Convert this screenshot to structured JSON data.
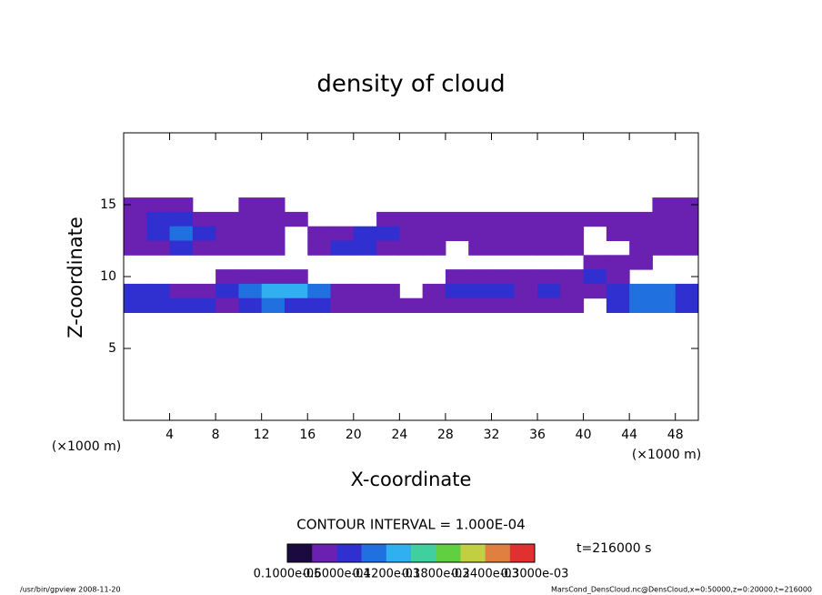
{
  "chart_data": {
    "type": "contour",
    "title": "density of cloud",
    "x_label": "X-coordinate",
    "y_label": "Z-coordinate",
    "x_unit_left": "(×1000 m)",
    "x_unit_right": "(×1000 m)",
    "contour_interval": "CONTOUR INTERVAL = 1.000E-04",
    "time_label": "t=216000 s",
    "footer_left": "/usr/bin/gpview  2008-11-20",
    "footer_right": "MarsCond_DensCloud.nc@DensCloud,x=0:50000,z=0:20000,t=216000",
    "xlim": [
      0,
      50
    ],
    "ylim": [
      0,
      20
    ],
    "xticks": [
      4,
      8,
      12,
      16,
      20,
      24,
      28,
      32,
      36,
      40,
      44,
      48
    ],
    "yticks": [
      5,
      10,
      15
    ],
    "x": [
      1,
      3,
      5,
      7,
      9,
      11,
      13,
      15,
      17,
      19,
      21,
      23,
      25,
      27,
      29,
      31,
      33,
      35,
      37,
      39,
      41,
      43,
      45,
      47,
      49
    ],
    "y": [
      15,
      14,
      13,
      12,
      11,
      10,
      9,
      8
    ],
    "grid": [
      [
        4e-05,
        4e-05,
        4e-05,
        null,
        null,
        4e-05,
        4e-05,
        null,
        null,
        null,
        null,
        null,
        null,
        null,
        null,
        null,
        null,
        null,
        null,
        null,
        null,
        null,
        null,
        4e-05,
        4e-05
      ],
      [
        4e-05,
        8e-05,
        8e-05,
        4e-05,
        4e-05,
        4e-05,
        4e-05,
        4e-05,
        null,
        null,
        null,
        4e-05,
        4e-05,
        4e-05,
        4e-05,
        4e-05,
        4e-05,
        4e-05,
        4e-05,
        4e-05,
        4e-05,
        4e-05,
        4e-05,
        4e-05,
        4e-05
      ],
      [
        4e-05,
        8e-05,
        0.00011,
        8e-05,
        4e-05,
        4e-05,
        4e-05,
        null,
        4e-05,
        4e-05,
        8e-05,
        8e-05,
        4e-05,
        4e-05,
        4e-05,
        4e-05,
        4e-05,
        4e-05,
        4e-05,
        4e-05,
        null,
        4e-05,
        4e-05,
        4e-05,
        4e-05
      ],
      [
        4e-05,
        4e-05,
        8e-05,
        4e-05,
        4e-05,
        4e-05,
        4e-05,
        null,
        4e-05,
        8e-05,
        8e-05,
        4e-05,
        4e-05,
        4e-05,
        null,
        4e-05,
        4e-05,
        4e-05,
        4e-05,
        4e-05,
        null,
        null,
        4e-05,
        4e-05,
        4e-05
      ],
      [
        null,
        null,
        null,
        null,
        null,
        null,
        null,
        null,
        null,
        null,
        null,
        null,
        null,
        null,
        null,
        null,
        null,
        null,
        null,
        null,
        4e-05,
        4e-05,
        4e-05,
        null,
        null
      ],
      [
        null,
        null,
        null,
        null,
        4e-05,
        4e-05,
        4e-05,
        4e-05,
        null,
        null,
        null,
        null,
        null,
        null,
        4e-05,
        4e-05,
        4e-05,
        4e-05,
        4e-05,
        4e-05,
        8e-05,
        4e-05,
        null,
        null,
        null
      ],
      [
        8e-05,
        8e-05,
        4e-05,
        4e-05,
        8e-05,
        0.00011,
        0.00014,
        0.00014,
        0.00011,
        4e-05,
        4e-05,
        4e-05,
        null,
        4e-05,
        8e-05,
        8e-05,
        8e-05,
        4e-05,
        8e-05,
        4e-05,
        4e-05,
        8e-05,
        0.00011,
        0.00011,
        8e-05
      ],
      [
        8e-05,
        8e-05,
        8e-05,
        8e-05,
        4e-05,
        8e-05,
        0.00011,
        8e-05,
        8e-05,
        4e-05,
        4e-05,
        4e-05,
        4e-05,
        4e-05,
        4e-05,
        4e-05,
        4e-05,
        4e-05,
        4e-05,
        4e-05,
        null,
        8e-05,
        0.00011,
        0.00011,
        8e-05
      ]
    ],
    "colorbar": {
      "levels": [
        0,
        3e-05,
        6e-05,
        9e-05,
        0.00012,
        0.00015,
        0.00018,
        0.00021,
        0.00024,
        0.00027
      ],
      "colors": [
        "#1a0a40",
        "#6a20b0",
        "#3030d0",
        "#2070e0",
        "#30b0f0",
        "#40d0a0",
        "#60d040",
        "#c0d040",
        "#e08040",
        "#e03030"
      ],
      "labels": [
        "0.1000e-05",
        "0.6000e-04",
        "0.1200e-03",
        "0.1800e-03",
        "0.2400e-03",
        "0.3000e-03"
      ]
    }
  }
}
